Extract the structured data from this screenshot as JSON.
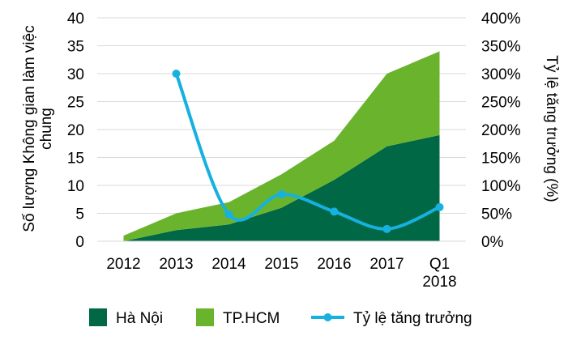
{
  "chart_data": {
    "type": "area",
    "categories": [
      "2012",
      "2013",
      "2014",
      "2015",
      "2016",
      "2017",
      "Q1 2018"
    ],
    "series": [
      {
        "name": "Hà Nội",
        "kind": "stacked-area",
        "axis": "left",
        "color": "#006845",
        "values": [
          0,
          2,
          3,
          6,
          11,
          17,
          19
        ]
      },
      {
        "name": "TP.HCM",
        "kind": "stacked-area",
        "axis": "left",
        "color": "#6ab42d",
        "values": [
          1,
          3,
          4,
          6,
          7,
          13,
          15
        ]
      },
      {
        "name": "Tỷ lệ tăng trưởng",
        "kind": "line",
        "axis": "right",
        "color": "#16b1df",
        "values": [
          null,
          300,
          48,
          84,
          53,
          22,
          61
        ]
      }
    ],
    "ylabel": "Số lượng Không gian làm việc chung",
    "y2label": "Tỷ lệ tăng trưởng (%)",
    "ylim": [
      0,
      40
    ],
    "y2lim": [
      0,
      400
    ],
    "yticks": [
      "0",
      "5",
      "10",
      "15",
      "20",
      "25",
      "30",
      "35",
      "40"
    ],
    "y2ticks": [
      "0%",
      "50%",
      "100%",
      "150%",
      "200%",
      "250%",
      "300%",
      "350%",
      "400%"
    ],
    "legend_position": "bottom",
    "grid": true
  }
}
